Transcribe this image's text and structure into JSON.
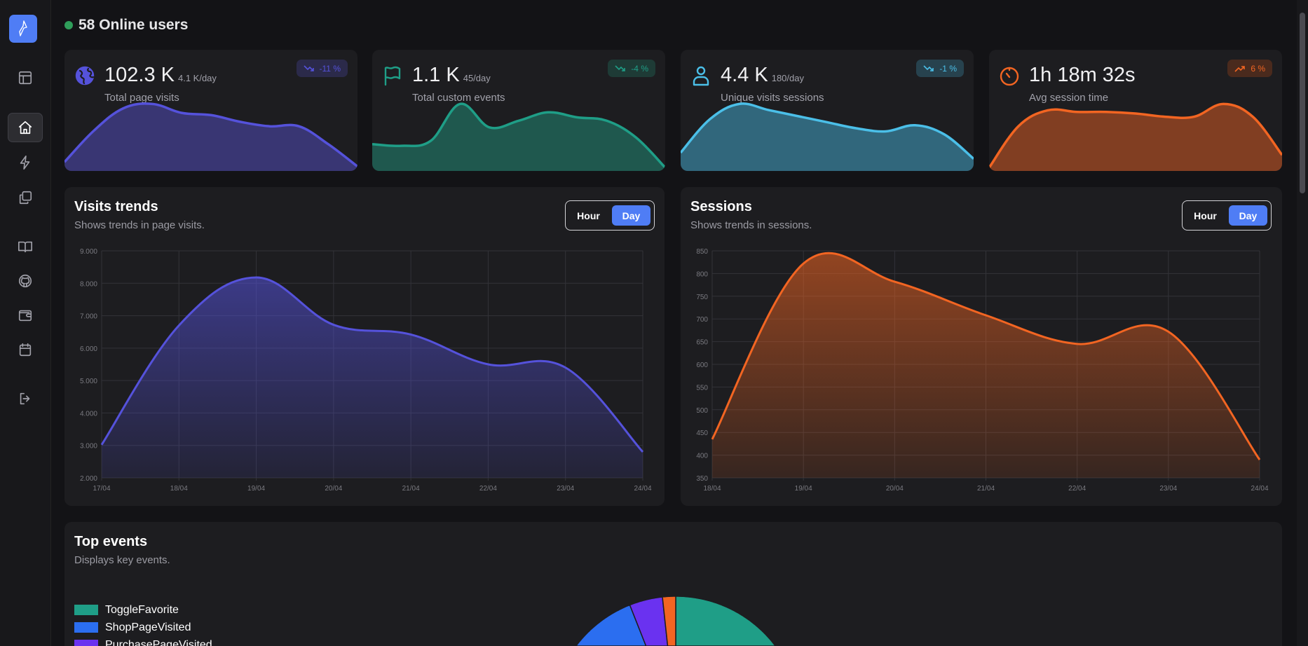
{
  "header": {
    "online_count_label": "58 Online users"
  },
  "sidebar": {
    "items": [
      {
        "name": "layout",
        "icon": "layout-icon"
      },
      {
        "name": "home",
        "icon": "home-icon",
        "active": true
      },
      {
        "name": "events",
        "icon": "bolt-icon"
      },
      {
        "name": "pages",
        "icon": "copy-icon"
      },
      {
        "name": "docs",
        "icon": "book-icon"
      },
      {
        "name": "github",
        "icon": "github-icon"
      },
      {
        "name": "wallet",
        "icon": "wallet-icon"
      },
      {
        "name": "calendar",
        "icon": "calendar-icon"
      },
      {
        "name": "logout",
        "icon": "logout-icon"
      }
    ]
  },
  "stats": [
    {
      "value": "102.3 K",
      "rate": "4.1 K/day",
      "label": "Total page visits",
      "change": "-11 %",
      "trend": "down",
      "icon": "globe-icon",
      "color": "#5552db",
      "fill": "#393673",
      "badge_bg": "#2b2a4a",
      "spark": [
        2,
        9,
        14,
        15,
        13,
        12.5,
        11,
        10,
        10,
        6,
        1
      ]
    },
    {
      "value": "1.1 K",
      "rate": "45/day",
      "label": "Total custom events",
      "change": "-4 %",
      "trend": "down",
      "icon": "flag-icon",
      "color": "#1f9e87",
      "fill": "#1f584e",
      "badge_bg": "#1e3b36",
      "spark": [
        8,
        7.5,
        9,
        20,
        13,
        15,
        17.5,
        16,
        15,
        10,
        1
      ]
    },
    {
      "value": "4.4 K",
      "rate": "180/day",
      "label": "Unique visits sessions",
      "change": "-1 %",
      "trend": "down",
      "icon": "user-icon",
      "color": "#4bbfe8",
      "fill": "#31677c",
      "badge_bg": "#27424e",
      "spark": [
        6,
        17,
        22,
        20,
        18,
        16,
        14,
        13,
        15,
        12,
        4
      ]
    },
    {
      "value": "1h 18m 32s",
      "rate": "",
      "label": "Avg session time",
      "change": "6 %",
      "trend": "up",
      "icon": "timer-icon",
      "color": "#f26522",
      "fill": "#813e22",
      "badge_bg": "#4a2a1d",
      "spark": [
        1,
        14,
        19,
        18.5,
        18.5,
        18,
        17,
        17,
        21,
        17,
        5
      ]
    }
  ],
  "visits": {
    "title": "Visits trends",
    "subtitle": "Shows trends in page visits.",
    "toggle": [
      "Hour",
      "Day"
    ],
    "selected": "Day"
  },
  "sessions": {
    "title": "Sessions",
    "subtitle": "Shows trends in sessions.",
    "toggle": [
      "Hour",
      "Day"
    ],
    "selected": "Day"
  },
  "top_events": {
    "title": "Top events",
    "subtitle": "Displays key events."
  },
  "chart_data": [
    {
      "type": "area",
      "x": [
        "17/04",
        "18/04",
        "19/04",
        "20/04",
        "21/04",
        "22/04",
        "23/04",
        "24/04"
      ],
      "values": [
        3020,
        6700,
        8180,
        6720,
        6420,
        5500,
        5400,
        2800
      ],
      "ylim": [
        2000,
        9000
      ],
      "yticks": [
        "2.000",
        "3.000",
        "4.000",
        "5.000",
        "6.000",
        "7.000",
        "8.000",
        "9.000"
      ],
      "grid": true,
      "color": "#5552db"
    },
    {
      "type": "area",
      "x": [
        "18/04",
        "19/04",
        "20/04",
        "21/04",
        "22/04",
        "23/04",
        "24/04"
      ],
      "values": [
        435,
        822,
        782,
        708,
        645,
        672,
        390
      ],
      "ylim": [
        350,
        850
      ],
      "yticks": [
        "350",
        "400",
        "450",
        "500",
        "550",
        "600",
        "650",
        "700",
        "750",
        "800",
        "850"
      ],
      "grid": true,
      "color": "#f26522"
    },
    {
      "type": "pie",
      "categories": [
        "ToggleFavorite",
        "ShopPageVisited",
        "PurchasePageVisited",
        ""
      ],
      "values": [
        60,
        34,
        4.3,
        1.7
      ],
      "colors": [
        "#1f9e87",
        "#2b6ef0",
        "#6a32f0",
        "#f26522"
      ],
      "legend": "left"
    }
  ]
}
